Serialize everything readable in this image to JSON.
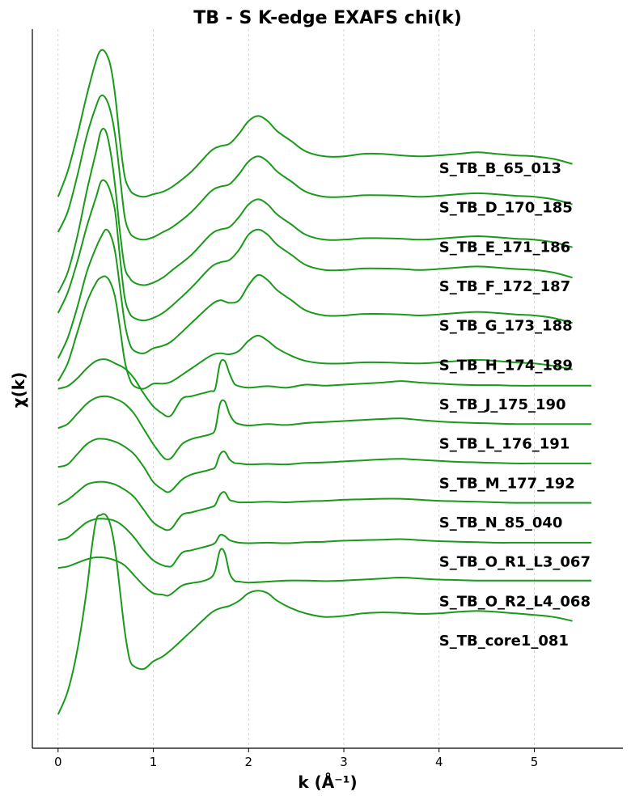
{
  "chart_data": {
    "type": "line",
    "title": "TB - S K-edge EXAFS chi(k)",
    "xlabel": "k (Å⁻¹)",
    "ylabel": "χ(k)",
    "xlim": [
      -0.27,
      5.93
    ],
    "ylim": [
      -0.62,
      13.62
    ],
    "x_ticks": [
      0,
      1,
      2,
      3,
      4,
      5
    ],
    "x_tick_labels": [
      "0",
      "1",
      "2",
      "3",
      "4",
      "5"
    ],
    "grid": "x-only dashed",
    "legend": "labels at right end of each curve",
    "line_color": "#1a9a1a",
    "label_x": 4.0,
    "series": [
      {
        "name": "S_TB_B_65_013",
        "x": [
          0,
          0.1,
          0.2,
          0.3,
          0.4,
          0.45,
          0.5,
          0.55,
          0.6,
          0.65,
          0.7,
          0.75,
          0.8,
          0.9,
          1.0,
          1.1,
          1.2,
          1.4,
          1.6,
          1.7,
          1.8,
          1.9,
          2.0,
          2.1,
          2.2,
          2.3,
          2.45,
          2.6,
          2.8,
          3.0,
          3.2,
          3.4,
          3.6,
          3.8,
          4.0,
          4.2,
          4.4,
          4.6,
          4.8,
          5.0,
          5.2,
          5.4
        ],
        "y": [
          10.3,
          10.8,
          11.5,
          12.3,
          13.0,
          13.2,
          13.15,
          12.9,
          12.3,
          11.4,
          10.7,
          10.45,
          10.35,
          10.3,
          10.35,
          10.4,
          10.5,
          10.8,
          11.2,
          11.3,
          11.35,
          11.55,
          11.8,
          11.9,
          11.8,
          11.6,
          11.4,
          11.2,
          11.1,
          11.1,
          11.15,
          11.15,
          11.12,
          11.1,
          11.12,
          11.15,
          11.18,
          11.15,
          11.12,
          11.1,
          11.05,
          10.95
        ]
      },
      {
        "name": "S_TB_D_170_185",
        "x": [
          0,
          0.1,
          0.2,
          0.3,
          0.4,
          0.45,
          0.5,
          0.55,
          0.6,
          0.65,
          0.7,
          0.75,
          0.8,
          0.9,
          1.0,
          1.1,
          1.2,
          1.4,
          1.6,
          1.7,
          1.8,
          1.9,
          2.0,
          2.1,
          2.2,
          2.3,
          2.45,
          2.6,
          2.8,
          3.0,
          3.2,
          3.4,
          3.6,
          3.8,
          4.0,
          4.2,
          4.4,
          4.6,
          4.8,
          5.0,
          5.2,
          5.4
        ],
        "y": [
          9.6,
          10.0,
          10.7,
          11.5,
          12.1,
          12.3,
          12.25,
          12.0,
          11.5,
          10.7,
          9.9,
          9.6,
          9.5,
          9.45,
          9.5,
          9.6,
          9.7,
          10.0,
          10.4,
          10.5,
          10.55,
          10.75,
          11.0,
          11.1,
          11.0,
          10.8,
          10.6,
          10.4,
          10.3,
          10.3,
          10.33,
          10.33,
          10.32,
          10.3,
          10.32,
          10.35,
          10.37,
          10.35,
          10.32,
          10.3,
          10.25,
          10.15
        ]
      },
      {
        "name": "S_TB_E_171_186",
        "x": [
          0,
          0.1,
          0.2,
          0.3,
          0.4,
          0.45,
          0.5,
          0.55,
          0.6,
          0.65,
          0.7,
          0.75,
          0.8,
          0.9,
          1.0,
          1.1,
          1.2,
          1.4,
          1.6,
          1.7,
          1.8,
          1.9,
          2.0,
          2.1,
          2.2,
          2.3,
          2.45,
          2.6,
          2.8,
          3.0,
          3.2,
          3.4,
          3.6,
          3.8,
          4.0,
          4.2,
          4.4,
          4.6,
          4.8,
          5.0,
          5.2,
          5.4
        ],
        "y": [
          8.4,
          8.8,
          9.5,
          10.4,
          11.2,
          11.6,
          11.6,
          11.2,
          10.5,
          9.6,
          8.9,
          8.7,
          8.6,
          8.55,
          8.6,
          8.7,
          8.85,
          9.15,
          9.55,
          9.65,
          9.7,
          9.9,
          10.15,
          10.25,
          10.15,
          9.95,
          9.75,
          9.55,
          9.45,
          9.45,
          9.48,
          9.48,
          9.47,
          9.45,
          9.47,
          9.5,
          9.52,
          9.5,
          9.47,
          9.45,
          9.4,
          9.3
        ]
      },
      {
        "name": "S_TB_F_172_187",
        "x": [
          0,
          0.1,
          0.2,
          0.3,
          0.4,
          0.45,
          0.5,
          0.55,
          0.6,
          0.65,
          0.7,
          0.75,
          0.8,
          0.9,
          1.0,
          1.1,
          1.2,
          1.4,
          1.6,
          1.7,
          1.8,
          1.9,
          2.0,
          2.1,
          2.2,
          2.3,
          2.45,
          2.6,
          2.8,
          3.0,
          3.2,
          3.4,
          3.6,
          3.8,
          4.0,
          4.2,
          4.4,
          4.6,
          4.8,
          5.0,
          5.2,
          5.4
        ],
        "y": [
          8.0,
          8.4,
          9.0,
          9.7,
          10.3,
          10.6,
          10.6,
          10.4,
          10.0,
          9.1,
          8.3,
          8.0,
          7.9,
          7.85,
          7.9,
          8.0,
          8.15,
          8.5,
          8.9,
          9.0,
          9.05,
          9.25,
          9.55,
          9.65,
          9.55,
          9.35,
          9.15,
          8.95,
          8.85,
          8.85,
          8.88,
          8.88,
          8.87,
          8.85,
          8.87,
          8.9,
          8.92,
          8.9,
          8.87,
          8.85,
          8.8,
          8.7
        ]
      },
      {
        "name": "S_TB_G_173_188",
        "x": [
          0,
          0.1,
          0.2,
          0.3,
          0.4,
          0.45,
          0.5,
          0.55,
          0.6,
          0.65,
          0.7,
          0.75,
          0.8,
          0.9,
          1.0,
          1.1,
          1.2,
          1.4,
          1.6,
          1.7,
          1.8,
          1.9,
          2.0,
          2.1,
          2.2,
          2.3,
          2.45,
          2.6,
          2.8,
          3.0,
          3.2,
          3.4,
          3.6,
          3.8,
          4.0,
          4.2,
          4.4,
          4.6,
          4.8,
          5.0,
          5.2,
          5.4
        ],
        "y": [
          7.1,
          7.5,
          8.1,
          8.8,
          9.3,
          9.5,
          9.65,
          9.55,
          9.2,
          8.5,
          7.8,
          7.4,
          7.25,
          7.2,
          7.3,
          7.35,
          7.45,
          7.8,
          8.15,
          8.25,
          8.2,
          8.25,
          8.55,
          8.75,
          8.65,
          8.45,
          8.25,
          8.05,
          7.95,
          7.95,
          7.98,
          7.98,
          7.97,
          7.95,
          7.97,
          8.0,
          8.02,
          8.0,
          7.97,
          7.95,
          7.9,
          7.8
        ]
      },
      {
        "name": "S_TB_H_174_189",
        "x": [
          0,
          0.1,
          0.2,
          0.3,
          0.4,
          0.45,
          0.5,
          0.55,
          0.6,
          0.65,
          0.7,
          0.75,
          0.8,
          0.9,
          1.0,
          1.1,
          1.2,
          1.4,
          1.6,
          1.7,
          1.8,
          1.9,
          2.0,
          2.1,
          2.2,
          2.3,
          2.45,
          2.6,
          2.8,
          3.0,
          3.2,
          3.4,
          3.6,
          3.8,
          4.0,
          4.2,
          4.4,
          4.6,
          4.8,
          5.0,
          5.2,
          5.4
        ],
        "y": [
          6.65,
          7.0,
          7.6,
          8.2,
          8.6,
          8.7,
          8.72,
          8.6,
          8.3,
          7.7,
          7.05,
          6.7,
          6.55,
          6.5,
          6.6,
          6.6,
          6.65,
          6.9,
          7.15,
          7.2,
          7.18,
          7.25,
          7.45,
          7.55,
          7.45,
          7.3,
          7.15,
          7.05,
          7.0,
          7.0,
          7.02,
          7.02,
          7.01,
          7.0,
          7.02,
          7.05,
          7.07,
          7.05,
          7.02,
          7.0,
          6.95,
          6.88
        ]
      },
      {
        "name": "S_TB_J_175_190",
        "x": [
          0,
          0.1,
          0.2,
          0.3,
          0.4,
          0.5,
          0.6,
          0.7,
          0.8,
          0.9,
          1.0,
          1.1,
          1.15,
          1.2,
          1.3,
          1.4,
          1.5,
          1.6,
          1.65,
          1.7,
          1.75,
          1.8,
          1.85,
          1.9,
          2.0,
          2.2,
          2.4,
          2.6,
          2.8,
          3.0,
          3.2,
          3.4,
          3.6,
          3.8,
          4.0,
          4.2,
          4.4,
          4.6,
          4.8,
          5.0,
          5.2,
          5.4,
          5.6
        ],
        "y": [
          6.5,
          6.55,
          6.7,
          6.9,
          7.05,
          7.08,
          7.0,
          6.9,
          6.7,
          6.4,
          6.15,
          6.0,
          5.95,
          6.0,
          6.3,
          6.35,
          6.4,
          6.45,
          6.5,
          7.0,
          7.05,
          6.8,
          6.6,
          6.55,
          6.52,
          6.55,
          6.52,
          6.58,
          6.56,
          6.58,
          6.6,
          6.62,
          6.65,
          6.62,
          6.6,
          6.58,
          6.57,
          6.57,
          6.56,
          6.56,
          6.56,
          6.56,
          6.56
        ]
      },
      {
        "name": "S_TB_L_176_191",
        "x": [
          0,
          0.1,
          0.2,
          0.3,
          0.4,
          0.5,
          0.6,
          0.7,
          0.8,
          0.9,
          1.0,
          1.1,
          1.15,
          1.2,
          1.3,
          1.4,
          1.5,
          1.6,
          1.65,
          1.7,
          1.75,
          1.8,
          1.85,
          1.9,
          2.0,
          2.2,
          2.4,
          2.6,
          2.8,
          3.0,
          3.2,
          3.4,
          3.6,
          3.8,
          4.0,
          4.2,
          4.4,
          4.6,
          4.8,
          5.0,
          5.2,
          5.4,
          5.6
        ],
        "y": [
          5.72,
          5.8,
          6.0,
          6.2,
          6.32,
          6.35,
          6.3,
          6.2,
          6.0,
          5.7,
          5.4,
          5.15,
          5.1,
          5.15,
          5.4,
          5.5,
          5.55,
          5.6,
          5.7,
          6.2,
          6.25,
          6.0,
          5.85,
          5.8,
          5.77,
          5.8,
          5.78,
          5.82,
          5.84,
          5.86,
          5.88,
          5.9,
          5.91,
          5.88,
          5.85,
          5.83,
          5.82,
          5.81,
          5.8,
          5.8,
          5.8,
          5.8,
          5.8
        ]
      },
      {
        "name": "S_TB_M_177_192",
        "x": [
          0,
          0.1,
          0.2,
          0.3,
          0.4,
          0.5,
          0.6,
          0.7,
          0.8,
          0.9,
          1.0,
          1.1,
          1.15,
          1.2,
          1.3,
          1.4,
          1.5,
          1.6,
          1.65,
          1.7,
          1.75,
          1.8,
          1.85,
          1.9,
          2.0,
          2.2,
          2.4,
          2.6,
          2.8,
          3.0,
          3.2,
          3.4,
          3.6,
          3.8,
          4.0,
          4.2,
          4.4,
          4.6,
          4.8,
          5.0,
          5.2,
          5.4,
          5.6
        ],
        "y": [
          4.95,
          5.0,
          5.2,
          5.4,
          5.5,
          5.5,
          5.45,
          5.35,
          5.2,
          4.95,
          4.65,
          4.5,
          4.45,
          4.5,
          4.7,
          4.8,
          4.85,
          4.9,
          4.95,
          5.2,
          5.25,
          5.1,
          5.03,
          5.02,
          5.0,
          5.01,
          5.0,
          5.03,
          5.04,
          5.06,
          5.08,
          5.1,
          5.11,
          5.09,
          5.07,
          5.05,
          5.04,
          5.03,
          5.02,
          5.02,
          5.02,
          5.02,
          5.02
        ]
      },
      {
        "name": "S_TB_N_85_040",
        "x": [
          0,
          0.1,
          0.2,
          0.3,
          0.4,
          0.5,
          0.6,
          0.7,
          0.8,
          0.9,
          1.0,
          1.1,
          1.15,
          1.2,
          1.3,
          1.4,
          1.5,
          1.6,
          1.65,
          1.7,
          1.75,
          1.8,
          1.85,
          1.9,
          2.0,
          2.2,
          2.4,
          2.6,
          2.8,
          3.0,
          3.2,
          3.4,
          3.6,
          3.8,
          4.0,
          4.2,
          4.4,
          4.6,
          4.8,
          5.0,
          5.2,
          5.4,
          5.6
        ],
        "y": [
          4.2,
          4.3,
          4.45,
          4.6,
          4.65,
          4.65,
          4.6,
          4.5,
          4.35,
          4.1,
          3.85,
          3.73,
          3.7,
          3.75,
          4.0,
          4.05,
          4.1,
          4.15,
          4.2,
          4.4,
          4.45,
          4.3,
          4.27,
          4.25,
          4.25,
          4.26,
          4.25,
          4.27,
          4.28,
          4.3,
          4.31,
          4.32,
          4.32,
          4.3,
          4.28,
          4.27,
          4.26,
          4.25,
          4.24,
          4.24,
          4.24,
          4.24,
          4.24
        ]
      },
      {
        "name": "S_TB_O_R1_L3_067",
        "x": [
          0,
          0.1,
          0.2,
          0.3,
          0.4,
          0.5,
          0.6,
          0.7,
          0.8,
          0.9,
          1.0,
          1.1,
          1.15,
          1.2,
          1.3,
          1.4,
          1.5,
          1.6,
          1.65,
          1.7,
          1.75,
          1.8,
          1.85,
          1.9,
          2.0,
          2.2,
          2.4,
          2.6,
          2.8,
          3.0,
          3.2,
          3.4,
          3.6,
          3.8,
          4.0,
          4.2,
          4.4,
          4.6,
          4.8,
          5.0,
          5.2,
          5.4,
          5.6
        ],
        "y": [
          3.5,
          3.55,
          3.7,
          3.85,
          3.92,
          3.92,
          3.88,
          3.75,
          3.55,
          3.3,
          3.1,
          3.0,
          2.98,
          3.0,
          3.25,
          3.3,
          3.35,
          3.4,
          3.45,
          3.6,
          3.58,
          3.5,
          3.47,
          3.45,
          3.44,
          3.45,
          3.44,
          3.46,
          3.47,
          3.49,
          3.5,
          3.51,
          3.52,
          3.5,
          3.48,
          3.47,
          3.46,
          3.45,
          3.45,
          3.45,
          3.45,
          3.45,
          3.45
        ]
      },
      {
        "name": "S_TB_O_R2_L4_068",
        "x": [
          0,
          0.1,
          0.2,
          0.3,
          0.4,
          0.5,
          0.6,
          0.7,
          0.8,
          0.9,
          1.0,
          1.1,
          1.15,
          1.2,
          1.3,
          1.4,
          1.5,
          1.6,
          1.65,
          1.7,
          1.75,
          1.8,
          1.85,
          1.9,
          2.0,
          2.2,
          2.4,
          2.6,
          2.8,
          3.0,
          3.2,
          3.4,
          3.6,
          3.8,
          4.0,
          4.2,
          4.4,
          4.6,
          4.8,
          5.0,
          5.2,
          5.4,
          5.6
        ],
        "y": [
          2.95,
          2.98,
          3.05,
          3.12,
          3.16,
          3.15,
          3.1,
          3.0,
          2.8,
          2.6,
          2.45,
          2.42,
          2.4,
          2.45,
          2.6,
          2.65,
          2.68,
          2.75,
          2.9,
          3.3,
          3.25,
          2.85,
          2.7,
          2.68,
          2.66,
          2.68,
          2.7,
          2.7,
          2.69,
          2.7,
          2.72,
          2.74,
          2.76,
          2.74,
          2.72,
          2.71,
          2.7,
          2.7,
          2.7,
          2.7,
          2.7,
          2.7,
          2.7
        ]
      },
      {
        "name": "S_TB_core1_081",
        "x": [
          0,
          0.1,
          0.2,
          0.3,
          0.35,
          0.4,
          0.45,
          0.5,
          0.55,
          0.6,
          0.65,
          0.7,
          0.75,
          0.8,
          0.9,
          1.0,
          1.1,
          1.2,
          1.4,
          1.6,
          1.7,
          1.8,
          1.9,
          2.0,
          2.1,
          2.2,
          2.3,
          2.45,
          2.6,
          2.8,
          3.0,
          3.2,
          3.4,
          3.6,
          3.8,
          4.0,
          4.2,
          4.4,
          4.6,
          4.8,
          5.0,
          5.2,
          5.4
        ],
        "y": [
          0.05,
          0.5,
          1.3,
          2.5,
          3.3,
          3.9,
          4.0,
          4.0,
          3.8,
          3.3,
          2.5,
          1.7,
          1.15,
          1.0,
          0.95,
          1.1,
          1.2,
          1.35,
          1.7,
          2.05,
          2.15,
          2.2,
          2.3,
          2.45,
          2.5,
          2.45,
          2.3,
          2.15,
          2.05,
          1.98,
          2.0,
          2.05,
          2.07,
          2.06,
          2.04,
          2.05,
          2.08,
          2.1,
          2.08,
          2.05,
          2.02,
          1.98,
          1.9
        ]
      }
    ]
  }
}
